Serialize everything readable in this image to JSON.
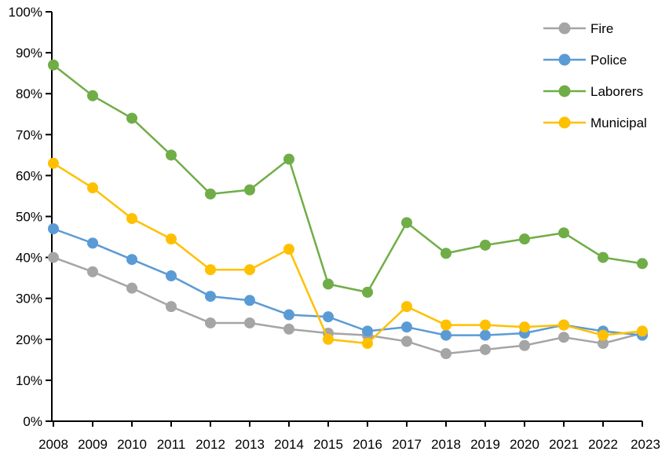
{
  "chart_data": {
    "type": "line",
    "title": "",
    "xlabel": "",
    "ylabel": "",
    "x_categories": [
      "2008",
      "2009",
      "2010",
      "2011",
      "2012",
      "2013",
      "2014",
      "2015",
      "2016",
      "2017",
      "2018",
      "2019",
      "2020",
      "2021",
      "2022",
      "2023"
    ],
    "series": [
      {
        "name": "Fire",
        "color": "#A5A5A5",
        "values": [
          40,
          36.5,
          32.5,
          28,
          24,
          24,
          22.5,
          21.5,
          21,
          19.5,
          16.5,
          17.5,
          18.5,
          20.5,
          19,
          21.5
        ]
      },
      {
        "name": "Police",
        "color": "#5B9BD5",
        "values": [
          47,
          43.5,
          39.5,
          35.5,
          30.5,
          29.5,
          26,
          25.5,
          22,
          23,
          21,
          21,
          21.5,
          23.5,
          22,
          21
        ]
      },
      {
        "name": "Laborers",
        "color": "#70AD47",
        "values": [
          87,
          79.5,
          74,
          65,
          55.5,
          56.5,
          64,
          33.5,
          31.5,
          48.5,
          41,
          43,
          44.5,
          46,
          40,
          38.5
        ]
      },
      {
        "name": "Municipal",
        "color": "#FFC000",
        "values": [
          63,
          57,
          49.5,
          44.5,
          37,
          37,
          42,
          20,
          19,
          28,
          23.5,
          23.5,
          23,
          23.5,
          21,
          22
        ]
      }
    ],
    "ylim": [
      0,
      100
    ],
    "y_tick_step": 10,
    "y_tick_labels": [
      "0%",
      "10%",
      "20%",
      "30%",
      "40%",
      "50%",
      "60%",
      "70%",
      "80%",
      "90%",
      "100%"
    ],
    "grid": false,
    "legend_position": "top-right",
    "legend_labels": [
      "Fire",
      "Police",
      "Laborers",
      "Municipal"
    ],
    "axis_color": "#000000",
    "background_color": "#FFFFFF",
    "marker_style": "circle"
  }
}
